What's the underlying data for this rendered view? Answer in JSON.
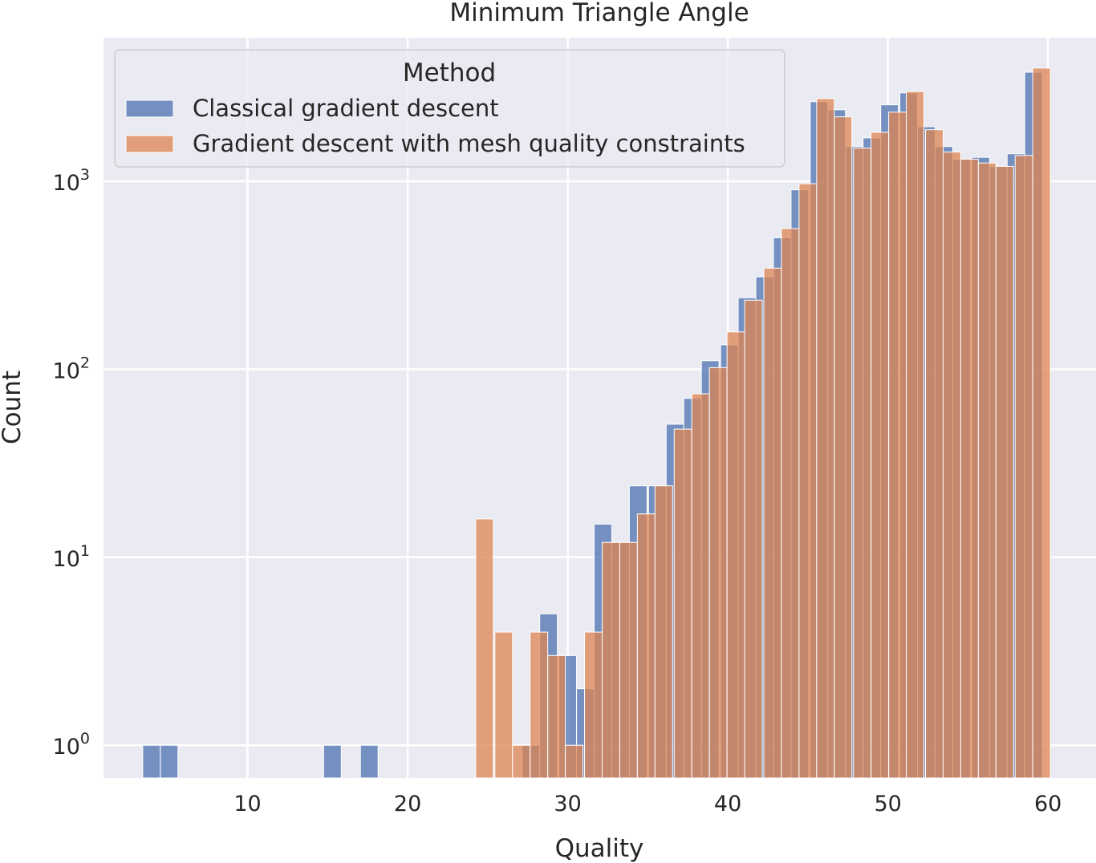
{
  "chart_data": {
    "type": "bar",
    "title": "Minimum Triangle Angle",
    "xlabel": "Quality",
    "ylabel": "Count",
    "y_scale": "log",
    "xlim": [
      1,
      63
    ],
    "ylim": [
      0.67,
      5800
    ],
    "grid": true,
    "legend_placement": "top-left",
    "legend_title": "Method",
    "x_ticks": [
      {
        "value": 10,
        "label": "10"
      },
      {
        "value": 20,
        "label": "20"
      },
      {
        "value": 30,
        "label": "30"
      },
      {
        "value": 40,
        "label": "40"
      },
      {
        "value": 50,
        "label": "50"
      },
      {
        "value": 60,
        "label": "60"
      }
    ],
    "y_ticks": [
      {
        "value": 1,
        "base": "10",
        "exp": "0"
      },
      {
        "value": 10,
        "base": "10",
        "exp": "1"
      },
      {
        "value": 100,
        "base": "10",
        "exp": "2"
      },
      {
        "value": 1000,
        "base": "10",
        "exp": "3"
      }
    ],
    "series": [
      {
        "name": "Classical gradient descent",
        "color": "#4c72b0",
        "points": [
          {
            "x": 4.0,
            "y": 1
          },
          {
            "x": 5.1,
            "y": 1
          },
          {
            "x": 15.3,
            "y": 1
          },
          {
            "x": 17.6,
            "y": 1
          },
          {
            "x": 27.7,
            "y": 1
          },
          {
            "x": 28.8,
            "y": 5
          },
          {
            "x": 30.0,
            "y": 3
          },
          {
            "x": 31.1,
            "y": 2
          },
          {
            "x": 32.2,
            "y": 15
          },
          {
            "x": 33.3,
            "y": 12
          },
          {
            "x": 34.4,
            "y": 24
          },
          {
            "x": 35.6,
            "y": 24
          },
          {
            "x": 36.7,
            "y": 51
          },
          {
            "x": 37.8,
            "y": 70
          },
          {
            "x": 38.9,
            "y": 111
          },
          {
            "x": 40.1,
            "y": 135
          },
          {
            "x": 41.2,
            "y": 240
          },
          {
            "x": 42.3,
            "y": 310
          },
          {
            "x": 43.4,
            "y": 500
          },
          {
            "x": 44.5,
            "y": 900
          },
          {
            "x": 45.7,
            "y": 2650
          },
          {
            "x": 46.8,
            "y": 2400
          },
          {
            "x": 47.9,
            "y": 1530
          },
          {
            "x": 49.0,
            "y": 1700
          },
          {
            "x": 50.1,
            "y": 2550
          },
          {
            "x": 51.3,
            "y": 2950
          },
          {
            "x": 52.4,
            "y": 1950
          },
          {
            "x": 53.5,
            "y": 1530
          },
          {
            "x": 54.6,
            "y": 1310
          },
          {
            "x": 55.8,
            "y": 1340
          },
          {
            "x": 56.9,
            "y": 1200
          },
          {
            "x": 58.0,
            "y": 1400
          },
          {
            "x": 59.1,
            "y": 3800
          }
        ]
      },
      {
        "name": "Gradient descent with mesh quality constraints",
        "color": "#dd8452",
        "points": [
          {
            "x": 24.8,
            "y": 16
          },
          {
            "x": 26.0,
            "y": 4
          },
          {
            "x": 27.1,
            "y": 1
          },
          {
            "x": 28.2,
            "y": 4
          },
          {
            "x": 29.3,
            "y": 3
          },
          {
            "x": 30.4,
            "y": 1
          },
          {
            "x": 31.6,
            "y": 4
          },
          {
            "x": 32.7,
            "y": 12
          },
          {
            "x": 33.8,
            "y": 12
          },
          {
            "x": 34.9,
            "y": 17
          },
          {
            "x": 36.0,
            "y": 24
          },
          {
            "x": 37.2,
            "y": 48
          },
          {
            "x": 38.3,
            "y": 74
          },
          {
            "x": 39.4,
            "y": 102
          },
          {
            "x": 40.5,
            "y": 158
          },
          {
            "x": 41.6,
            "y": 233
          },
          {
            "x": 42.8,
            "y": 345
          },
          {
            "x": 43.9,
            "y": 560
          },
          {
            "x": 45.0,
            "y": 970
          },
          {
            "x": 46.1,
            "y": 2750
          },
          {
            "x": 47.2,
            "y": 2200
          },
          {
            "x": 48.4,
            "y": 1500
          },
          {
            "x": 49.5,
            "y": 1820
          },
          {
            "x": 50.6,
            "y": 2330
          },
          {
            "x": 51.7,
            "y": 3000
          },
          {
            "x": 52.9,
            "y": 1880
          },
          {
            "x": 54.0,
            "y": 1430
          },
          {
            "x": 55.1,
            "y": 1310
          },
          {
            "x": 56.2,
            "y": 1250
          },
          {
            "x": 57.3,
            "y": 1200
          },
          {
            "x": 58.5,
            "y": 1370
          },
          {
            "x": 59.6,
            "y": 4000
          }
        ]
      }
    ]
  }
}
